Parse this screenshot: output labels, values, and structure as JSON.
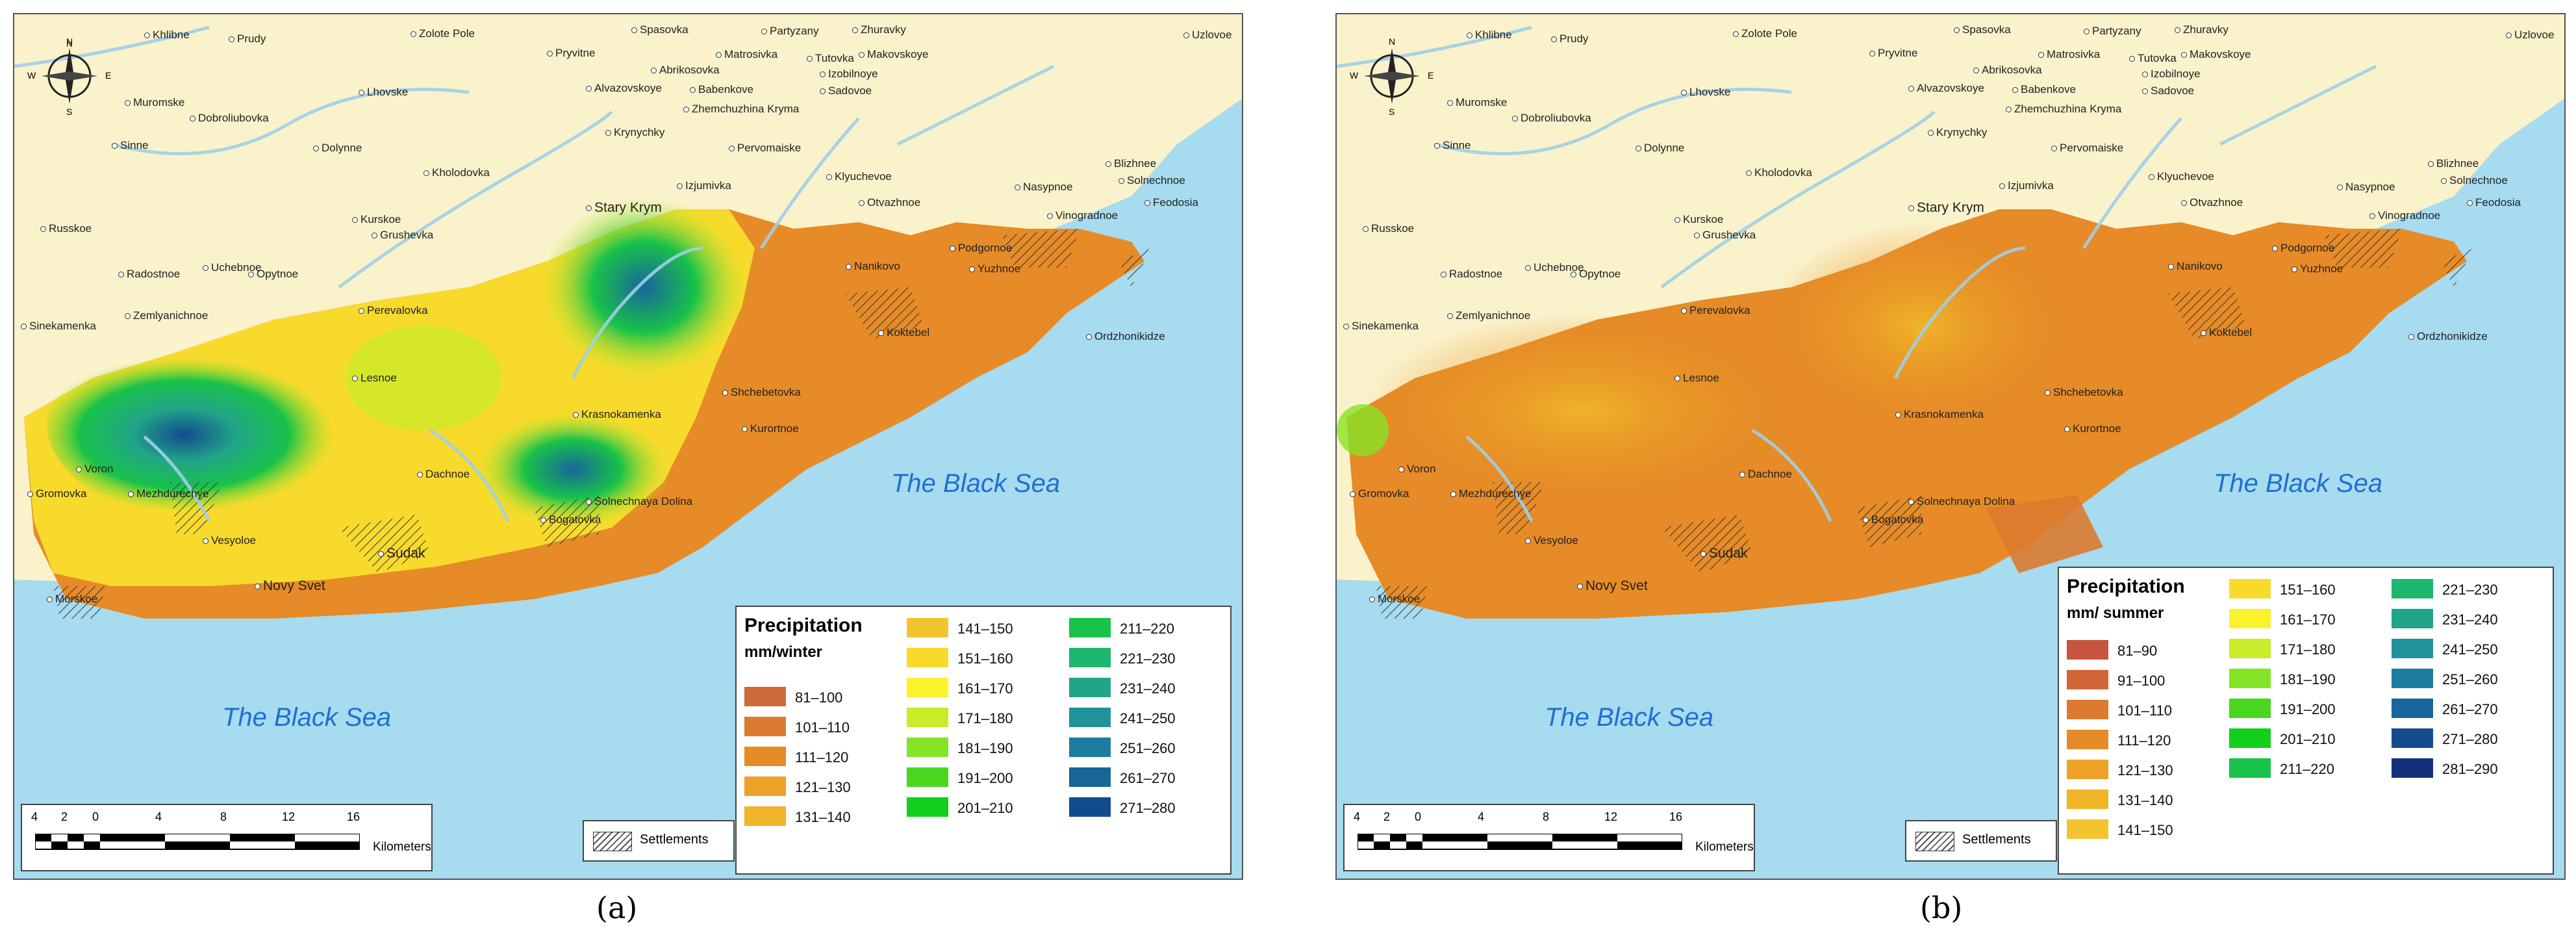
{
  "panels": [
    {
      "caption": "(a)",
      "legend": {
        "title": "Precipitation",
        "unit": "mm/winter",
        "items": [
          {
            "label": "81–100",
            "color": "#cf6a3a"
          },
          {
            "label": "101–110",
            "color": "#dc7a2f"
          },
          {
            "label": "111–120",
            "color": "#e68b27"
          },
          {
            "label": "121–130",
            "color": "#eda126"
          },
          {
            "label": "131–140",
            "color": "#efb428"
          },
          {
            "label": "141–150",
            "color": "#f3c430"
          },
          {
            "label": "151–160",
            "color": "#f8da2c"
          },
          {
            "label": "161–170",
            "color": "#fbf22e"
          },
          {
            "label": "171–180",
            "color": "#c8ec2a"
          },
          {
            "label": "181–190",
            "color": "#86e426"
          },
          {
            "label": "191–200",
            "color": "#49d81f"
          },
          {
            "label": "201–210",
            "color": "#12cf1c"
          },
          {
            "label": "211–220",
            "color": "#19c24a"
          },
          {
            "label": "221–230",
            "color": "#1eb76e"
          },
          {
            "label": "231–240",
            "color": "#21a588"
          },
          {
            "label": "241–250",
            "color": "#20929a"
          },
          {
            "label": "251–260",
            "color": "#1d7d9f"
          },
          {
            "label": "261–270",
            "color": "#18669a"
          },
          {
            "label": "271–280",
            "color": "#134c8e"
          }
        ]
      },
      "sea_label_south": "The Black Sea",
      "sea_label_east": "The Black Sea"
    },
    {
      "caption": "(b)",
      "legend": {
        "title": "Precipitation",
        "unit": "mm/ summer",
        "items": [
          {
            "label": "81–90",
            "color": "#c7543d"
          },
          {
            "label": "91–100",
            "color": "#d26638"
          },
          {
            "label": "101–110",
            "color": "#dc7a2f"
          },
          {
            "label": "111–120",
            "color": "#e68b27"
          },
          {
            "label": "121–130",
            "color": "#eda126"
          },
          {
            "label": "131–140",
            "color": "#efb428"
          },
          {
            "label": "141–150",
            "color": "#f3c430"
          },
          {
            "label": "151–160",
            "color": "#f8da2c"
          },
          {
            "label": "161–170",
            "color": "#fbf22e"
          },
          {
            "label": "171–180",
            "color": "#c8ec2a"
          },
          {
            "label": "181–190",
            "color": "#86e426"
          },
          {
            "label": "191–200",
            "color": "#49d81f"
          },
          {
            "label": "201–210",
            "color": "#12cf1c"
          },
          {
            "label": "211–220",
            "color": "#19c24a"
          },
          {
            "label": "221–230",
            "color": "#1eb76e"
          },
          {
            "label": "231–240",
            "color": "#21a588"
          },
          {
            "label": "241–250",
            "color": "#20929a"
          },
          {
            "label": "251–260",
            "color": "#1d7d9f"
          },
          {
            "label": "261–270",
            "color": "#18669a"
          },
          {
            "label": "271–280",
            "color": "#134c8e"
          },
          {
            "label": "281–290",
            "color": "#13307a"
          }
        ]
      },
      "sea_label_south": "The Black Sea",
      "sea_label_east": "The Black Sea"
    }
  ],
  "scale": {
    "ticks": [
      "4",
      "2",
      "0",
      "4",
      "8",
      "12",
      "16"
    ],
    "unit": "Kilometers"
  },
  "settlements_label": "Settlements",
  "compass": {
    "n": "N",
    "s": "S",
    "e": "E",
    "w": "W"
  },
  "places": {
    "khlibne": "Khlibne",
    "prudy": "Prudy",
    "zolote_pole": "Zolote Pole",
    "pryvitne": "Pryvitne",
    "spasovka": "Spasovka",
    "partyzany": "Partyzany",
    "zhuravky": "Zhuravky",
    "uzlovoe": "Uzlovoe",
    "matrosivka": "Matrosivka",
    "tutovka": "Tutovka",
    "makovskoye": "Makovskoye",
    "abrikosovka": "Abrikosovka",
    "izobilnoye": "Izobilnoye",
    "alvazovskoye": "Alvazovskoye",
    "babenkove": "Babenkove",
    "sadovoe": "Sadovoe",
    "muromske": "Muromske",
    "dobroliubovka": "Dobroliubovka",
    "lhovske": "Lhovske",
    "zhemchuzhina": "Zhemchuzhina Kryma",
    "sinne": "Sinne",
    "dolynne": "Dolynne",
    "krynychky": "Krynychky",
    "pervomaiske": "Pervomaiske",
    "blizhnee": "Blizhnee",
    "kholodovka": "Kholodovka",
    "klyuchevoe": "Klyuchevoe",
    "solnechnoe": "Solnechnoe",
    "izjumivka": "Izjumivka",
    "nasypnoe": "Nasypnoe",
    "otvazhnoe": "Otvazhnoe",
    "stary_krym": "Stary Krym",
    "vinogradnoe": "Vinogradnoe",
    "feodosia": "Feodosia",
    "russkoe": "Russkoe",
    "kurskoe": "Kurskoe",
    "grushevka": "Grushevka",
    "radostnoe": "Radostnoe",
    "uchebnoe": "Uchebnoe",
    "opytnoe": "Opytnoe",
    "nanikovo": "Nanikovo",
    "podgornoe": "Podgornoe",
    "yuzhnoe": "Yuzhnoe",
    "zemlyanichnoe": "Zemlyanichnoe",
    "sinekamenka": "Sinekamenka",
    "perevalovka": "Perevalovka",
    "koktebel": "Koktebel",
    "ordzhonikidze": "Ordzhonikidze",
    "lesnoe": "Lesnoe",
    "shchebetovka": "Shchebetovka",
    "krasnokamenka": "Krasnokamenka",
    "kurortnoe": "Kurortnoe",
    "voron": "Voron",
    "gromovka": "Gromovka",
    "mezhdurechye": "Mezhdurechye",
    "dachnoe": "Dachnoe",
    "solnechnaya_dolina": "Solnechnaya Dolina",
    "bogatovka": "Bogatovka",
    "vesyoloe": "Vesyoloe",
    "sudak": "Sudak",
    "novy_svet": "Novy Svet",
    "morskoe": "Morskoe"
  }
}
